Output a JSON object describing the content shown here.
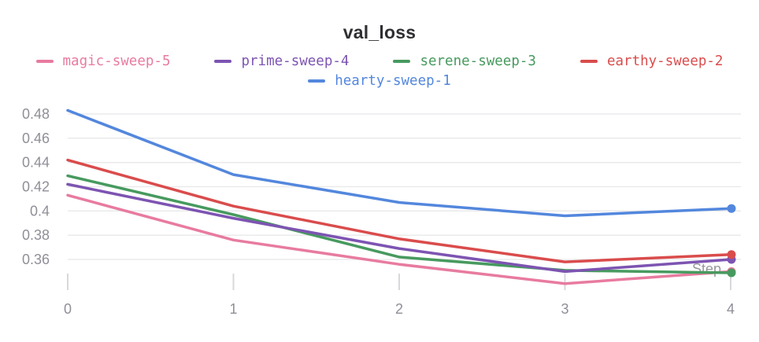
{
  "title": "val_loss",
  "legend": {
    "items": [
      {
        "name": "magic-sweep-5",
        "color": "#e87b9f"
      },
      {
        "name": "prime-sweep-4",
        "color": "#7d54b2"
      },
      {
        "name": "serene-sweep-3",
        "color": "#479a5f"
      },
      {
        "name": "earthy-sweep-2",
        "color": "#da4c4c"
      },
      {
        "name": "hearty-sweep-1",
        "color": "#5387dd"
      }
    ]
  },
  "axes": {
    "y_tick_labels": [
      "0.48",
      "0.46",
      "0.44",
      "0.42",
      "0.4",
      "0.38",
      "0.36"
    ],
    "y_tick_values": [
      0.48,
      0.46,
      0.44,
      0.42,
      0.4,
      0.38,
      0.36
    ],
    "x_tick_labels": [
      "0",
      "1",
      "2",
      "3",
      "4"
    ],
    "x_axis_label": "Step"
  },
  "chart_data": {
    "type": "line",
    "title": "val_loss",
    "xlabel": "Step",
    "ylabel": "",
    "x": [
      0,
      1,
      2,
      3,
      4
    ],
    "ylim": [
      0.335,
      0.49
    ],
    "grid": "horizontal",
    "legend_position": "top",
    "series": [
      {
        "name": "magic-sweep-5",
        "color": "#e87b9f",
        "values": [
          0.413,
          0.376,
          0.356,
          0.34,
          0.35
        ]
      },
      {
        "name": "prime-sweep-4",
        "color": "#7d54b2",
        "values": [
          0.422,
          0.394,
          0.369,
          0.35,
          0.36
        ]
      },
      {
        "name": "serene-sweep-3",
        "color": "#479a5f",
        "values": [
          0.429,
          0.397,
          0.362,
          0.351,
          0.349
        ]
      },
      {
        "name": "earthy-sweep-2",
        "color": "#da4c4c",
        "values": [
          0.442,
          0.404,
          0.377,
          0.358,
          0.364
        ]
      },
      {
        "name": "hearty-sweep-1",
        "color": "#5387dd",
        "values": [
          0.483,
          0.43,
          0.407,
          0.396,
          0.402
        ]
      }
    ],
    "end_markers": true
  }
}
